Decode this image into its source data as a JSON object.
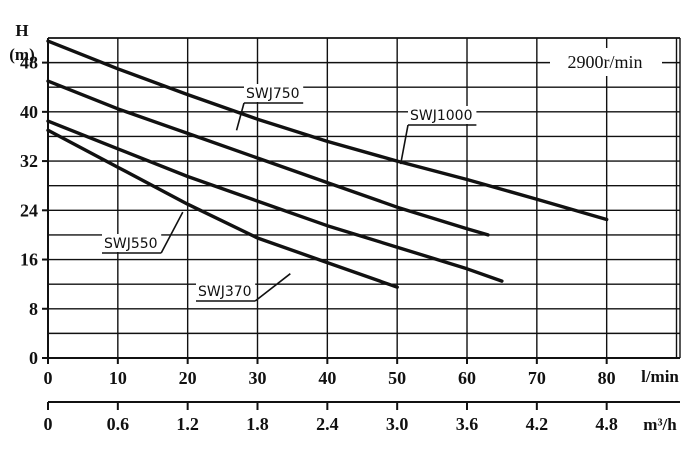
{
  "chart_data": {
    "type": "line",
    "annotation": "2900r/min",
    "y_axis": {
      "label_top": "H",
      "label_unit": "(m)",
      "range": [
        0,
        52
      ],
      "ticks": [
        0,
        8,
        16,
        24,
        32,
        40,
        48
      ]
    },
    "x_axis_flow_lmin": {
      "unit": "l/min",
      "range": [
        0,
        80
      ],
      "ticks": [
        0,
        10,
        20,
        30,
        40,
        50,
        60,
        70,
        80
      ]
    },
    "x_axis_flow_m3h": {
      "unit": "m³/h",
      "ticks": [
        "0",
        "0.6",
        "1.2",
        "1.8",
        "2.4",
        "3.0",
        "3.6",
        "4.2",
        "4.8"
      ]
    },
    "series": [
      {
        "name": "SWJ1000",
        "points": [
          [
            0,
            51.5
          ],
          [
            10,
            47
          ],
          [
            20,
            42.8
          ],
          [
            30,
            38.8
          ],
          [
            40,
            35.2
          ],
          [
            50,
            32
          ],
          [
            60,
            29
          ],
          [
            70,
            25.8
          ],
          [
            80,
            22.5
          ]
        ]
      },
      {
        "name": "SWJ750",
        "points": [
          [
            0,
            45
          ],
          [
            10,
            40.5
          ],
          [
            20,
            36.5
          ],
          [
            30,
            32.5
          ],
          [
            40,
            28.5
          ],
          [
            50,
            24.5
          ],
          [
            60,
            21
          ],
          [
            63,
            20
          ]
        ]
      },
      {
        "name": "SWJ550",
        "points": [
          [
            0,
            38.5
          ],
          [
            10,
            34
          ],
          [
            20,
            29.5
          ],
          [
            30,
            25.5
          ],
          [
            40,
            21.5
          ],
          [
            50,
            18
          ],
          [
            60,
            14.5
          ],
          [
            65,
            12.5
          ]
        ]
      },
      {
        "name": "SWJ370",
        "points": [
          [
            0,
            37
          ],
          [
            10,
            31
          ],
          [
            20,
            25
          ],
          [
            30,
            19.5
          ],
          [
            40,
            15.5
          ],
          [
            50,
            11.5
          ]
        ]
      }
    ]
  }
}
